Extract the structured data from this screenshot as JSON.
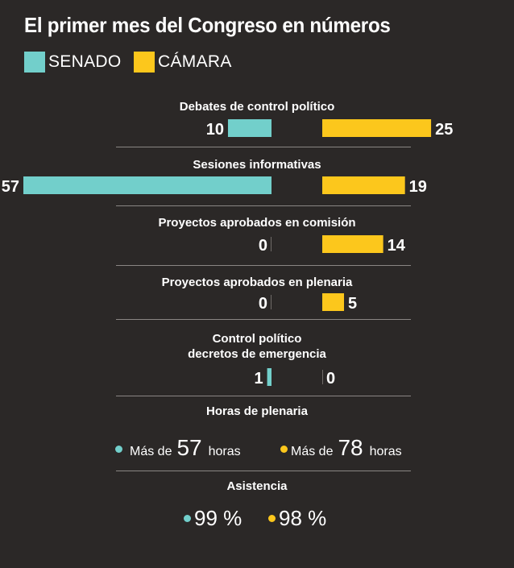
{
  "title": "El primer mes del Congreso en números",
  "colors": {
    "senado": "#72cfcb",
    "camara": "#fcc71c",
    "background": "#2b2827",
    "divider": "#8a8684"
  },
  "legend": [
    {
      "label": "SENADO",
      "color": "#72cfcb"
    },
    {
      "label": "CÁMARA",
      "color": "#fcc71c"
    }
  ],
  "chart_data": {
    "type": "bar",
    "orientation": "horizontal-diverging",
    "series": [
      {
        "name": "SENADO",
        "values": [
          10,
          57,
          0,
          0,
          1
        ]
      },
      {
        "name": "CÁMARA",
        "values": [
          25,
          19,
          14,
          5,
          0
        ]
      }
    ],
    "categories": [
      "Debates de control político",
      "Sesiones informativas",
      "Proyectos aprobados en comisión",
      "Proyectos aprobados en plenaria",
      "Control político decretos de emergencia"
    ],
    "category_titles": [
      [
        "Debates de control político"
      ],
      [
        "Sesiones informativas"
      ],
      [
        "Proyectos aprobados en comisión"
      ],
      [
        "Proyectos aprobados en plenaria"
      ],
      [
        "Control político",
        "decretos de emergencia"
      ]
    ],
    "legend_position": "top-left",
    "grid": false
  },
  "hours": {
    "title": "Horas de plenaria",
    "senado": {
      "prefix": "Más de",
      "value": "57",
      "suffix": "horas"
    },
    "camara": {
      "prefix": "Más de",
      "value": "78",
      "suffix": "horas"
    }
  },
  "attendance": {
    "title": "Asistencia",
    "senado": "99 %",
    "camara": "98 %"
  }
}
